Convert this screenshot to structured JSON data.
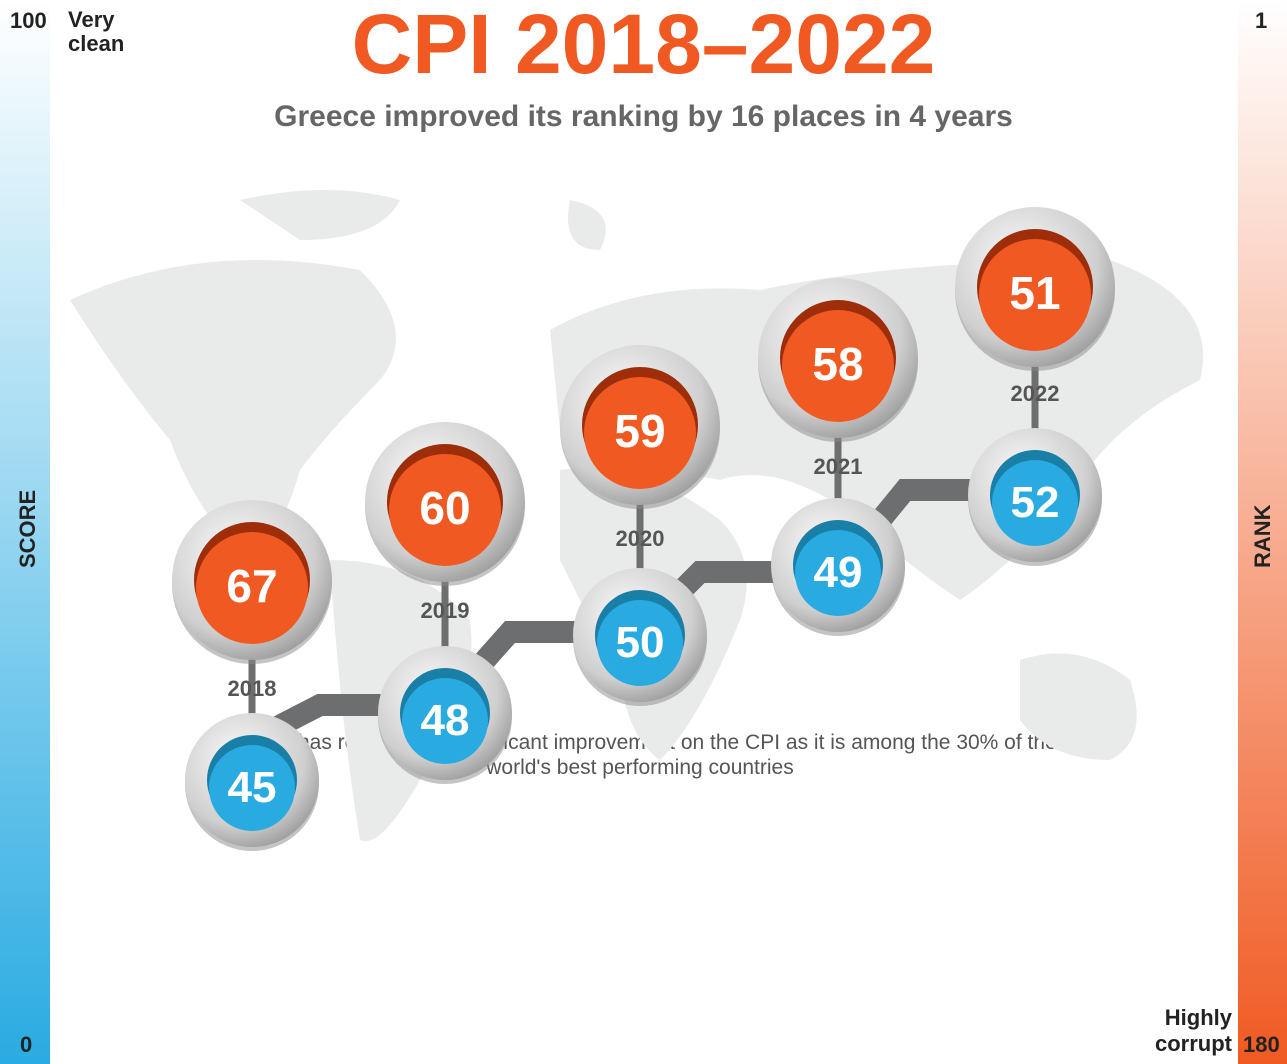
{
  "title": "CPI 2018–2022",
  "subtitle": "Greece improved its ranking by 16 places in 4 years",
  "score_scale": {
    "label": "SCORE",
    "top": "100",
    "top_label": "Very clean",
    "bottom": "0"
  },
  "rank_scale": {
    "label": "RANK",
    "top": "1",
    "bottom": "180",
    "bottom_label": "Highly corrupt"
  },
  "years": [
    {
      "year": "2018",
      "rank": "67",
      "score": "45"
    },
    {
      "year": "2019",
      "rank": "60",
      "score": "48"
    },
    {
      "year": "2020",
      "rank": "59",
      "score": "50"
    },
    {
      "year": "2021",
      "rank": "58",
      "score": "49"
    },
    {
      "year": "2022",
      "rank": "51",
      "score": "52"
    }
  ],
  "note": "Greece has registered a significant improvement on the CPI as it is among the 30% of the world's best performing countries"
}
